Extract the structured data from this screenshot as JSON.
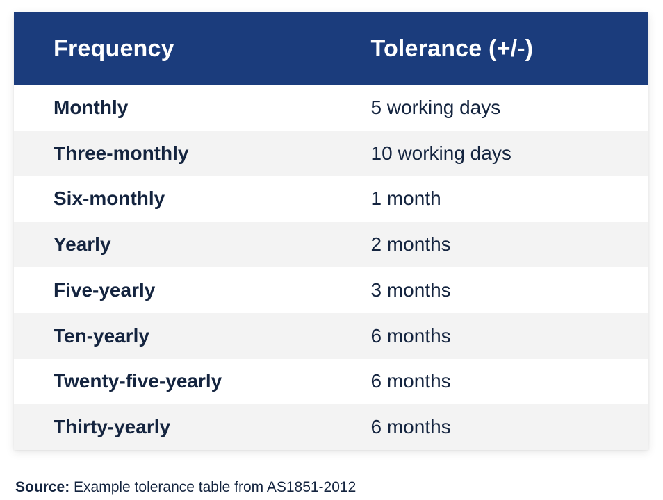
{
  "table": {
    "headers": {
      "frequency": "Frequency",
      "tolerance": "Tolerance (+/-)"
    },
    "rows": [
      {
        "frequency": "Monthly",
        "tolerance": "5 working days"
      },
      {
        "frequency": "Three-monthly",
        "tolerance": "10 working days"
      },
      {
        "frequency": "Six-monthly",
        "tolerance": "1 month"
      },
      {
        "frequency": "Yearly",
        "tolerance": "2 months"
      },
      {
        "frequency": "Five-yearly",
        "tolerance": "3 months"
      },
      {
        "frequency": "Ten-yearly",
        "tolerance": "6 months"
      },
      {
        "frequency": "Twenty-five-yearly",
        "tolerance": "6 months"
      },
      {
        "frequency": "Thirty-yearly",
        "tolerance": "6 months"
      }
    ]
  },
  "source": {
    "label": "Source:",
    "text": " Example tolerance table from AS1851-2012"
  },
  "colors": {
    "header_background": "#1b3c7c",
    "header_text": "#ffffff",
    "body_text": "#14243f",
    "striped_row": "#f3f3f3"
  }
}
